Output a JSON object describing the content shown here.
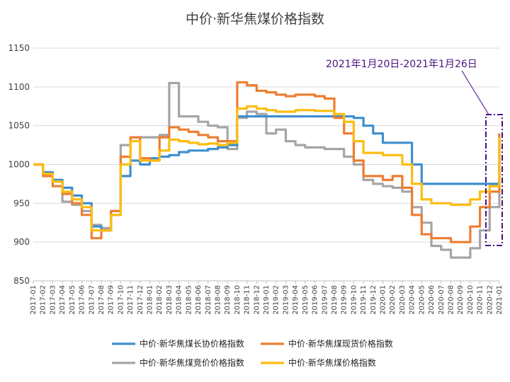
{
  "chart_data": {
    "type": "line",
    "title": "中价·新华焦煤价格指数",
    "xlabel": "",
    "ylabel": "",
    "ylim": [
      850,
      1150
    ],
    "yticks": [
      850,
      900,
      950,
      1000,
      1050,
      1100,
      1150
    ],
    "grid": true,
    "legend_position": "bottom",
    "x": [
      "2017-01",
      "2017-02",
      "2017-03",
      "2017-04",
      "2017-05",
      "2017-06",
      "2017-07",
      "2017-08",
      "2017-09",
      "2017-10",
      "2017-11",
      "2017-12",
      "2018-01",
      "2018-02",
      "2018-03",
      "2018-04",
      "2018-05",
      "2018-06",
      "2018-07",
      "2018-08",
      "2018-09",
      "2018-10",
      "2018-11",
      "2018-12",
      "2019-01",
      "2019-02",
      "2019-03",
      "2019-04",
      "2019-05",
      "2019-06",
      "2019-07",
      "2019-08",
      "2019-09",
      "2019-10",
      "2019-11",
      "2019-12",
      "2020-01",
      "2020-02",
      "2020-03",
      "2020-04",
      "2020-05",
      "2020-06",
      "2020-07",
      "2020-08",
      "2020-09",
      "2020-10",
      "2020-11",
      "2020-12",
      "2021-01"
    ],
    "xtick_labels": [
      "2017-01",
      "2017-02",
      "2017-03",
      "2017-04",
      "2017-05",
      "2017-06",
      "2017-07",
      "2017-08",
      "2017-09",
      "2017-10",
      "2017-11",
      "2017-12",
      "2018-01",
      "2018-02",
      "2018-03",
      "2018-04",
      "2018-05",
      "2018-06",
      "2018-07",
      "2018-08",
      "2018-09",
      "2018-10",
      "2018-11",
      "2018-12",
      "2019-01",
      "2019-02",
      "2019-03",
      "2019-04",
      "2019-05",
      "2019-06",
      "2019-07",
      "2019-08",
      "2019-09",
      "2019-10",
      "2019-11",
      "2019-12",
      "2020-01",
      "2020-02",
      "2020-03",
      "2020-04",
      "2020-05",
      "2020-06",
      "2020-07",
      "2020-08",
      "2020-09",
      "2020-10",
      "2020-11",
      "2020-12",
      "2021-01"
    ],
    "series": [
      {
        "name": "中价·新华焦煤长协价格指数",
        "color": "#3f8fce",
        "values": [
          1000,
          990,
          980,
          970,
          960,
          950,
          920,
          915,
          935,
          985,
          1005,
          1000,
          1008,
          1010,
          1012,
          1016,
          1018,
          1018,
          1020,
          1022,
          1025,
          1062,
          1062,
          1062,
          1062,
          1062,
          1062,
          1062,
          1062,
          1062,
          1062,
          1062,
          1062,
          1060,
          1050,
          1040,
          1028,
          1028,
          1028,
          1000,
          975,
          975,
          975,
          975,
          975,
          975,
          975,
          975,
          1040
        ]
      },
      {
        "name": "中价·新华焦煤现货价格指数",
        "color": "#ee7d30",
        "values": [
          1000,
          985,
          972,
          962,
          950,
          935,
          905,
          915,
          940,
          1010,
          1035,
          1008,
          1005,
          1035,
          1048,
          1045,
          1042,
          1038,
          1035,
          1030,
          1030,
          1106,
          1102,
          1095,
          1093,
          1090,
          1088,
          1090,
          1090,
          1088,
          1085,
          1060,
          1040,
          1005,
          985,
          985,
          980,
          985,
          970,
          935,
          910,
          905,
          905,
          900,
          900,
          920,
          945,
          965,
          1040
        ]
      },
      {
        "name": "中价·新华焦煤竞价价格指数",
        "color": "#a5a5a5",
        "values": [
          1000,
          988,
          980,
          952,
          948,
          940,
          922,
          918,
          940,
          1025,
          1035,
          1035,
          1035,
          1038,
          1105,
          1062,
          1062,
          1055,
          1050,
          1048,
          1020,
          1060,
          1068,
          1065,
          1040,
          1045,
          1030,
          1025,
          1022,
          1022,
          1020,
          1020,
          1010,
          1000,
          980,
          975,
          972,
          970,
          965,
          945,
          925,
          895,
          890,
          880,
          880,
          892,
          915,
          945,
          1030
        ]
      },
      {
        "name": "中价·新华焦煤价格指数",
        "color": "#fdbd0f",
        "values": [
          1000,
          988,
          978,
          965,
          955,
          945,
          915,
          915,
          935,
          1000,
          1030,
          1005,
          1005,
          1018,
          1032,
          1030,
          1028,
          1026,
          1027,
          1025,
          1028,
          1072,
          1075,
          1072,
          1070,
          1068,
          1068,
          1070,
          1070,
          1069,
          1069,
          1065,
          1055,
          1030,
          1015,
          1015,
          1012,
          1012,
          1000,
          975,
          955,
          950,
          950,
          948,
          948,
          955,
          965,
          972,
          1035
        ]
      }
    ],
    "annotation": "2021年1月20日-2021年1月26日"
  }
}
